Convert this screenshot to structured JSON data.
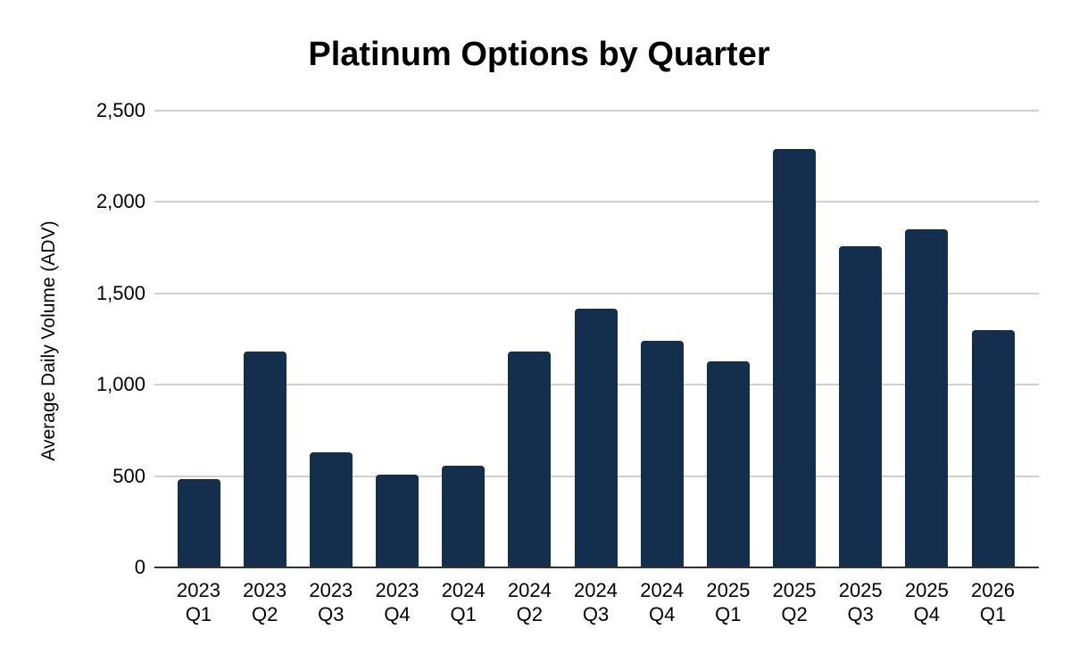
{
  "chart_data": {
    "type": "bar",
    "title": "Platinum Options by Quarter",
    "xlabel": "",
    "ylabel": "Average Daily Volume (ADV)",
    "categories": [
      "2023 Q1",
      "2023 Q2",
      "2023 Q3",
      "2023 Q4",
      "2024 Q1",
      "2024 Q2",
      "2024 Q3",
      "2024 Q4",
      "2025 Q1",
      "2025 Q2",
      "2025 Q3",
      "2025 Q4",
      "2026 Q1"
    ],
    "values": [
      485,
      1180,
      632,
      508,
      557,
      1180,
      1417,
      1238,
      1130,
      2290,
      1757,
      1853,
      1297
    ],
    "ylim": [
      0,
      2500
    ],
    "yticks": [
      0,
      500,
      1000,
      1500,
      2000,
      2500
    ],
    "ytick_labels": [
      "0",
      "500",
      "1,000",
      "1,500",
      "2,000",
      "2,500"
    ],
    "grid": true,
    "legend": "none",
    "colors": {
      "bar": "#142f4d",
      "gridline": "#d0d0d0",
      "axis_line": "#333333",
      "text": "#000000",
      "background": "#ffffff"
    }
  }
}
